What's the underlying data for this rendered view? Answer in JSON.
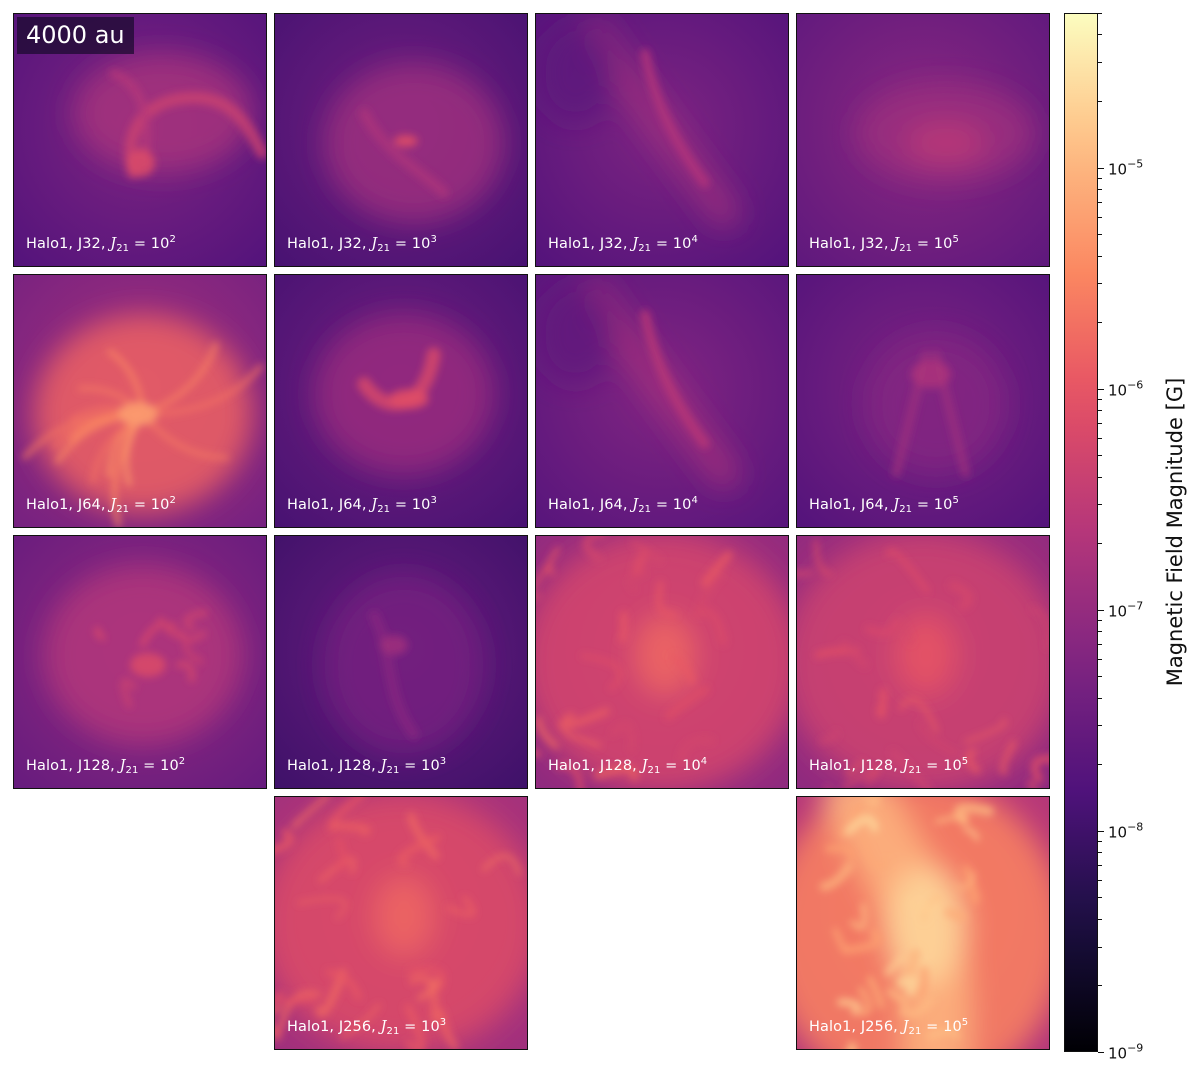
{
  "scale_label": "4000 au",
  "colorbar": {
    "label": "Magnetic Field Magnitude [G]",
    "colormap": "magma",
    "scale": "log",
    "range": [
      1e-09,
      5e-05
    ],
    "ticks": [
      {
        "base": "10",
        "exp": "−5"
      },
      {
        "base": "10",
        "exp": "−6"
      },
      {
        "base": "10",
        "exp": "−7"
      },
      {
        "base": "10",
        "exp": "−8"
      },
      {
        "base": "10",
        "exp": "−9"
      }
    ]
  },
  "panels": [
    {
      "halo": "Halo1, J32, ",
      "j": "J",
      "sub": "21",
      "eq": " = 10",
      "exp": "2",
      "bg": 0.33,
      "peak": 0.6,
      "style": "arc-s"
    },
    {
      "halo": "Halo1, J32, ",
      "j": "J",
      "sub": "21",
      "eq": " = 10",
      "exp": "3",
      "bg": 0.3,
      "peak": 0.62,
      "style": "point"
    },
    {
      "halo": "Halo1, J32, ",
      "j": "J",
      "sub": "21",
      "eq": " = 10",
      "exp": "4",
      "bg": 0.33,
      "peak": 0.5,
      "style": "diag"
    },
    {
      "halo": "Halo1, J32, ",
      "j": "J",
      "sub": "21",
      "eq": " = 10",
      "exp": "5",
      "bg": 0.36,
      "peak": 0.52,
      "style": "blob"
    },
    {
      "halo": "Halo1, J64, ",
      "j": "J",
      "sub": "21",
      "eq": " = 10",
      "exp": "2",
      "bg": 0.42,
      "peak": 0.8,
      "style": "burst"
    },
    {
      "halo": "Halo1, J64, ",
      "j": "J",
      "sub": "21",
      "eq": " = 10",
      "exp": "3",
      "bg": 0.3,
      "peak": 0.62,
      "style": "hook"
    },
    {
      "halo": "Halo1, J64, ",
      "j": "J",
      "sub": "21",
      "eq": " = 10",
      "exp": "4",
      "bg": 0.34,
      "peak": 0.52,
      "style": "diag"
    },
    {
      "halo": "Halo1, J64, ",
      "j": "J",
      "sub": "21",
      "eq": " = 10",
      "exp": "5",
      "bg": 0.33,
      "peak": 0.48,
      "style": "fan"
    },
    {
      "halo": "Halo1, J128, ",
      "j": "J",
      "sub": "21",
      "eq": " = 10",
      "exp": "2",
      "bg": 0.38,
      "peak": 0.6,
      "style": "swirl"
    },
    {
      "halo": "Halo1, J128, ",
      "j": "J",
      "sub": "21",
      "eq": " = 10",
      "exp": "3",
      "bg": 0.28,
      "peak": 0.45,
      "style": "faint"
    },
    {
      "halo": "Halo1, J128, ",
      "j": "J",
      "sub": "21",
      "eq": " = 10",
      "exp": "4",
      "bg": 0.48,
      "peak": 0.68,
      "style": "turb"
    },
    {
      "halo": "Halo1, J128, ",
      "j": "J",
      "sub": "21",
      "eq": " = 10",
      "exp": "5",
      "bg": 0.48,
      "peak": 0.64,
      "style": "turb"
    },
    {
      "halo": "Halo1, J256, ",
      "j": "J",
      "sub": "21",
      "eq": " = 10",
      "exp": "3",
      "bg": 0.52,
      "peak": 0.68,
      "style": "turb"
    },
    {
      "halo": "Halo1, J256, ",
      "j": "J",
      "sub": "21",
      "eq": " = 10",
      "exp": "5",
      "bg": 0.56,
      "peak": 0.92,
      "style": "hot"
    }
  ]
}
